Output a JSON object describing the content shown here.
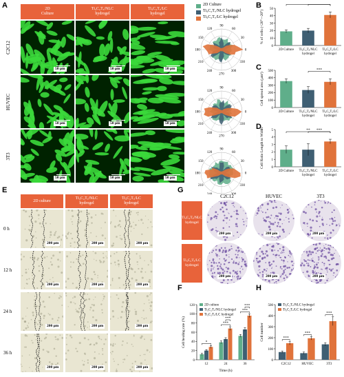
{
  "panels": {
    "A": "A",
    "B": "B",
    "C": "C",
    "D": "D",
    "E": "E",
    "F": "F",
    "G": "G",
    "H": "H"
  },
  "panelA": {
    "columns": [
      "2D Culture",
      "Ti3C2Tx/NLC hydrogel",
      "Ti3C2Tx/LC hydrogel"
    ],
    "column_display": [
      [
        "2D",
        "Culture"
      ],
      [
        "Ti₃C₂Tₓ/NLC",
        "hydrogel"
      ],
      [
        "Ti₃C₂Tₓ/LC",
        "hydrogel"
      ]
    ],
    "rows": [
      "C2C12",
      "HUVEC",
      "3T3"
    ],
    "scale": "50 μm",
    "legend": [
      "2D Culture",
      "Ti₃C₂Tₓ/NLC hydrogel",
      "Ti₃C₂Tₓ/LC hydrogel"
    ],
    "polar_ticks": [
      "0",
      "30",
      "60",
      "90",
      "120",
      "150",
      "180",
      "210",
      "240",
      "270",
      "300",
      "330"
    ]
  },
  "panelE": {
    "columns": [
      [
        "2D culture"
      ],
      [
        "Ti₃C₂Tₓ/NLC",
        "hydrogel"
      ],
      [
        "Ti₃C₂Tₓ/LC",
        "hydrogel"
      ]
    ],
    "rows": [
      "0 h",
      "12 h",
      "24 h",
      "36 h"
    ],
    "scale": "200 μm"
  },
  "panelG": {
    "columns": [
      "C2C12",
      "HUVEC",
      "3T3"
    ],
    "rows": [
      [
        "Ti₃C₂Tₓ/NLC",
        "hydrogel"
      ],
      [
        "Ti₃C₂Tₓ/LC",
        "hydrogel"
      ]
    ],
    "scale": "200 μm"
  },
  "colors": {
    "culture2d": "#5fae8a",
    "nlc": "#3f5f73",
    "lc": "#e0733b"
  },
  "chart_data": [
    {
      "id": "B",
      "type": "bar",
      "categories": [
        [
          "2D Culture"
        ],
        [
          "Ti₃C₂Tₓ/NLC",
          "hydrogel"
        ],
        [
          "Ti₃C₂Tₓ/LC",
          "hydrogel"
        ]
      ],
      "values": [
        19,
        20,
        41
      ],
      "errors": [
        2,
        3,
        4
      ],
      "ylabel": "% of cells (<20°~-20°)",
      "ylim": [
        0,
        50
      ],
      "yticks": [
        0,
        10,
        20,
        30,
        40,
        50
      ],
      "significance": [
        {
          "from": 0,
          "to": 2,
          "label": "***"
        },
        {
          "from": 1,
          "to": 2,
          "label": "**"
        }
      ]
    },
    {
      "id": "C",
      "type": "bar",
      "categories": [
        [
          "2D Culture"
        ],
        [
          "Ti₃C₂Tₓ/NLC",
          "hydrogel"
        ],
        [
          "Ti₃C₂Tₓ/LC",
          "hydrogel"
        ]
      ],
      "values": [
        355,
        235,
        345
      ],
      "errors": [
        30,
        45,
        40
      ],
      "ylabel": "Cell spread area (μm²)",
      "ylim": [
        0,
        500
      ],
      "yticks": [
        0,
        100,
        200,
        300,
        400,
        500
      ],
      "significance": [
        {
          "from": 1,
          "to": 2,
          "label": "***"
        }
      ]
    },
    {
      "id": "D",
      "type": "bar",
      "categories": [
        [
          "2D Culture"
        ],
        [
          "Ti₃C₂Tₓ/NLC",
          "hydrogel"
        ],
        [
          "Ti₃C₂Tₓ/LC",
          "hydrogel"
        ]
      ],
      "values": [
        2.3,
        2.3,
        3.4
      ],
      "errors": [
        0.5,
        0.8,
        0.3
      ],
      "ylabel": "Cell Ratio Length to Width",
      "ylim": [
        0,
        5
      ],
      "yticks": [
        0,
        1,
        2,
        3,
        4,
        5
      ],
      "significance": [
        {
          "from": 0,
          "to": 2,
          "label": "**"
        },
        {
          "from": 1,
          "to": 2,
          "label": "***"
        }
      ]
    },
    {
      "id": "F",
      "type": "bar",
      "categories": [
        "12",
        "24",
        "36"
      ],
      "series": [
        {
          "name": "2D culture",
          "values": [
            12,
            38,
            52
          ],
          "errors": [
            2,
            3,
            3
          ]
        },
        {
          "name": "Ti₃C₂Tₓ/NLC hydrogel",
          "values": [
            20,
            45,
            66
          ],
          "errors": [
            2,
            3,
            4
          ]
        },
        {
          "name": "Ti₃C₂Tₓ/LC hydrogel",
          "values": [
            28,
            68,
            96
          ],
          "errors": [
            3,
            4,
            4
          ]
        }
      ],
      "xlabel": "Time (h)",
      "ylabel": "Cell healing rate (%)",
      "ylim": [
        0,
        120
      ],
      "yticks": [
        0,
        20,
        40,
        60,
        80,
        100,
        120
      ],
      "significance": [
        {
          "cat": 0,
          "label": "*"
        },
        {
          "cat": 1,
          "label": "***"
        },
        {
          "cat": 1,
          "label": "***"
        },
        {
          "cat": 2,
          "label": "***"
        },
        {
          "cat": 2,
          "label": "***"
        }
      ]
    },
    {
      "id": "H",
      "type": "bar",
      "categories": [
        "C2C12",
        "HUVEC",
        "3T3"
      ],
      "series": [
        {
          "name": "Ti₃C₂Tₓ/NLC hydrogel",
          "values": [
            70,
            60,
            140
          ],
          "errors": [
            10,
            10,
            15
          ]
        },
        {
          "name": "Ti₃C₂Tₓ/LC hydrogel",
          "values": [
            150,
            195,
            350
          ],
          "errors": [
            15,
            15,
            40
          ]
        }
      ],
      "ylabel": "Cell number",
      "ylim": [
        0,
        500
      ],
      "yticks": [
        0,
        100,
        200,
        300,
        400,
        500
      ],
      "significance": [
        {
          "cat": 0,
          "label": "***"
        },
        {
          "cat": 1,
          "label": "***"
        },
        {
          "cat": 2,
          "label": "***"
        }
      ]
    }
  ]
}
